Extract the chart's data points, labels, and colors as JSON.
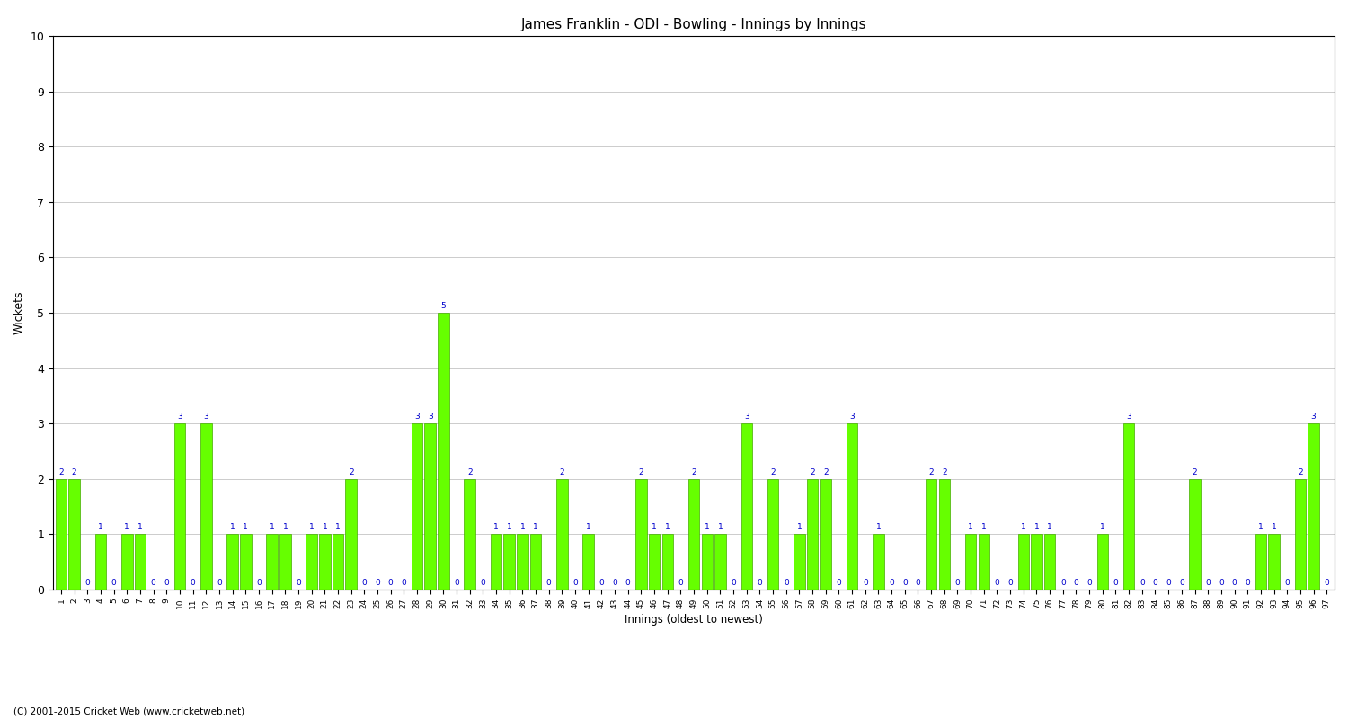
{
  "title": "James Franklin - ODI - Bowling - Innings by Innings",
  "xlabel": "Innings (oldest to newest)",
  "ylabel": "Wickets",
  "background_color": "#ffffff",
  "bar_color": "#66ff00",
  "bar_edge_color": "#44aa00",
  "text_color": "#0000cc",
  "ylim": [
    0,
    10
  ],
  "yticks": [
    0,
    1,
    2,
    3,
    4,
    5,
    6,
    7,
    8,
    9,
    10
  ],
  "footer": "(C) 2001-2015 Cricket Web (www.cricketweb.net)",
  "categories": [
    "1",
    "2",
    "3",
    "4",
    "5",
    "6",
    "7",
    "8",
    "9",
    "10",
    "11",
    "12",
    "13",
    "14",
    "15",
    "16",
    "17",
    "18",
    "19",
    "20",
    "21",
    "22",
    "23",
    "24",
    "25",
    "26",
    "27",
    "28",
    "29",
    "30",
    "31",
    "32",
    "33",
    "34",
    "35",
    "36",
    "37",
    "38",
    "39",
    "40",
    "41",
    "42",
    "43",
    "44",
    "45",
    "46",
    "47",
    "48",
    "49",
    "50",
    "51",
    "52",
    "53",
    "54",
    "55",
    "56",
    "57",
    "58",
    "59",
    "60",
    "61",
    "62",
    "63",
    "64",
    "65",
    "66",
    "67",
    "68",
    "69",
    "70",
    "71",
    "72",
    "73",
    "74",
    "75",
    "76",
    "77",
    "78",
    "79",
    "80",
    "81",
    "82",
    "83",
    "84",
    "85",
    "86",
    "87",
    "88",
    "89",
    "90",
    "91",
    "92",
    "93",
    "94",
    "95",
    "96",
    "97"
  ],
  "values": [
    2,
    2,
    0,
    1,
    0,
    1,
    1,
    0,
    0,
    3,
    0,
    3,
    0,
    1,
    1,
    0,
    1,
    1,
    0,
    1,
    1,
    1,
    2,
    0,
    0,
    0,
    0,
    3,
    3,
    5,
    0,
    2,
    0,
    1,
    1,
    1,
    1,
    0,
    2,
    0,
    1,
    0,
    0,
    0,
    2,
    1,
    1,
    0,
    2,
    1,
    1,
    0,
    3,
    0,
    2,
    0,
    1,
    2,
    2,
    0,
    3,
    0,
    1,
    0,
    0,
    0,
    2,
    2,
    0,
    1,
    1,
    0,
    0,
    1,
    1,
    1,
    0,
    0,
    0,
    1,
    0,
    3,
    0,
    0,
    0,
    0,
    2,
    0,
    0,
    0,
    0,
    1,
    1,
    0,
    2,
    3,
    0
  ]
}
